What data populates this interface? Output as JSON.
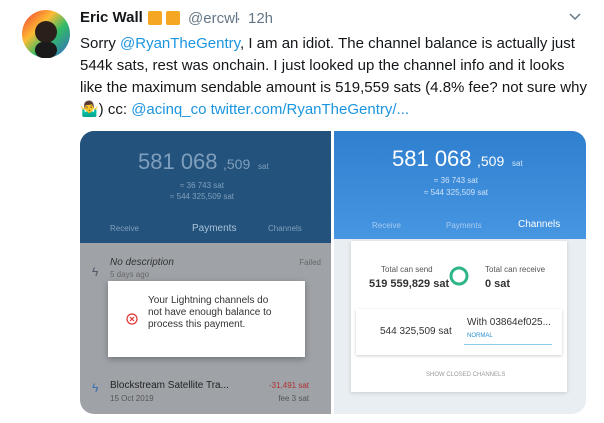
{
  "tweet": {
    "author": "Eric Wall",
    "handle": "@ercwl",
    "time": "12h",
    "text": [
      "Sorry ",
      "@RyanTheGentry",
      ", I am an idiot. The channel balance is actually just 544k sats, rest was onchain. I just looked up the channel info and it looks like the maximum sendable amount is 519,559 sats (4.8% fee? not sure why 🤷‍♂️) cc: ",
      "@acinq_co",
      "twitter.com/RyanTheGentry/..."
    ],
    "images": [
      {
        "balance_main": "581 068",
        "balance_decimals": ",509",
        "balance_unit": "sat",
        "fiat": "≈ 36 743 sat",
        "onchain": "≈ 544 325,509 sat",
        "tabs": [
          "Receive",
          "Payments",
          "Channels"
        ],
        "payments": [
          {
            "title": "No description",
            "date": "5 days ago",
            "status": "Failed"
          },
          {
            "title": "Blockstream Satellite Tra...",
            "date": "15 Oct 2019",
            "amount": "-31,491 sat",
            "fee": "fee 3 sat"
          }
        ],
        "dialog": "Your Lightning channels do not have enough balance to process this payment."
      },
      {
        "balance_main": "581 068",
        "balance_decimals": ",509",
        "balance_unit": "sat",
        "fiat": "≈ 36 743 sat",
        "onchain": "≈ 544 325,509 sat",
        "tabs": [
          "Receive",
          "Payments",
          "Channels"
        ],
        "send_label": "Total can send",
        "send_value": "519 559,829 sat",
        "receive_label": "Total can receive",
        "receive_value": "0 sat",
        "channel_balance": "544 325,509 sat",
        "channel_peer": "With 03864ef025...",
        "channel_state": "NORMAL",
        "show_closed": "SHOW CLOSED CHANNELS"
      }
    ]
  }
}
